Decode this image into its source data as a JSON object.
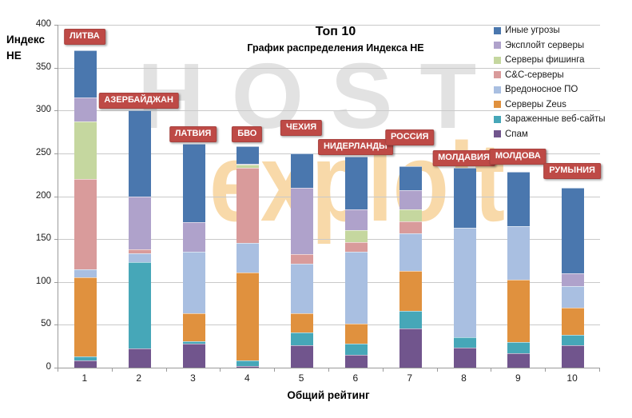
{
  "watermark": {
    "line1": "HOST",
    "line2": "exploit"
  },
  "chart_data": {
    "type": "bar",
    "stacked": true,
    "title": "Топ 10",
    "subtitle": "График распределения Индекса НЕ",
    "xlabel": "Общий рейтинг",
    "ylabel": "Индекс НЕ",
    "ylim": [
      0,
      400
    ],
    "ytick_step": 50,
    "grid": true,
    "legend_position": "top-right",
    "categories": [
      "1",
      "2",
      "3",
      "4",
      "5",
      "6",
      "7",
      "8",
      "9",
      "10"
    ],
    "bar_labels": [
      "ЛИТВА",
      "АЗЕРБАЙДЖАН",
      "ЛАТВИЯ",
      "БВО",
      "ЧЕХИЯ",
      "НИДЕРЛАНДЫ",
      "РОССИЯ",
      "МОЛДАВИЯ",
      "МОЛДОВА",
      "РУМЫНИЯ"
    ],
    "bar_label_color": "#be4a46",
    "bar_label_offsets": [
      5,
      0,
      0,
      3,
      20,
      0,
      24,
      0,
      7,
      9
    ],
    "series": [
      {
        "name": "Иные угрозы",
        "color": "#4a77ae",
        "values": [
          55,
          100,
          91,
          20,
          40,
          61,
          28,
          70,
          63,
          100
        ]
      },
      {
        "name": "Эксплойт серверы",
        "color": "#afa2cb",
        "values": [
          28,
          62,
          35,
          1,
          78,
          25,
          22,
          0,
          0,
          15
        ]
      },
      {
        "name": "Серверы фишинга",
        "color": "#c5d79f",
        "values": [
          67,
          0,
          0,
          4,
          0,
          14,
          14,
          0,
          0,
          0
        ]
      },
      {
        "name": "C&C-серверы",
        "color": "#d99b9b",
        "values": [
          105,
          5,
          0,
          88,
          11,
          11,
          14,
          0,
          0,
          0
        ]
      },
      {
        "name": "Вредоносное ПО",
        "color": "#a9bfe1",
        "values": [
          10,
          10,
          72,
          34,
          58,
          84,
          44,
          128,
          62,
          25
        ]
      },
      {
        "name": "Серверы Zeus",
        "color": "#e0913e",
        "values": [
          92,
          0,
          32,
          103,
          22,
          23,
          47,
          0,
          73,
          32
        ]
      },
      {
        "name": "Зараженные веб-сайты",
        "color": "#46a7b8",
        "values": [
          5,
          101,
          3,
          6,
          15,
          13,
          20,
          12,
          13,
          12
        ]
      },
      {
        "name": "Спам",
        "color": "#71558d",
        "values": [
          8,
          22,
          28,
          2,
          26,
          15,
          46,
          23,
          17,
          26
        ]
      }
    ],
    "totals": [
      370,
      300,
      261,
      258,
      250,
      246,
      235,
      233,
      228,
      210
    ]
  }
}
